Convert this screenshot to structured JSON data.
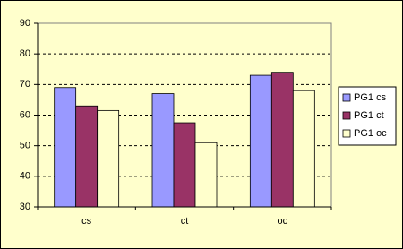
{
  "chart_data": {
    "type": "bar",
    "categories": [
      "cs",
      "ct",
      "oc"
    ],
    "series": [
      {
        "name": "PG1 cs",
        "color": "#9999ff",
        "values": [
          69,
          67,
          73
        ]
      },
      {
        "name": "PG1 ct",
        "color": "#993366",
        "values": [
          63,
          57.5,
          74
        ]
      },
      {
        "name": "PG1 oc",
        "color": "#ffffcc",
        "values": [
          61.5,
          51,
          68
        ]
      }
    ],
    "ylim": [
      30,
      90
    ],
    "yticks": [
      30,
      40,
      50,
      60,
      70,
      80,
      90
    ],
    "grid": true,
    "legend": "right"
  }
}
